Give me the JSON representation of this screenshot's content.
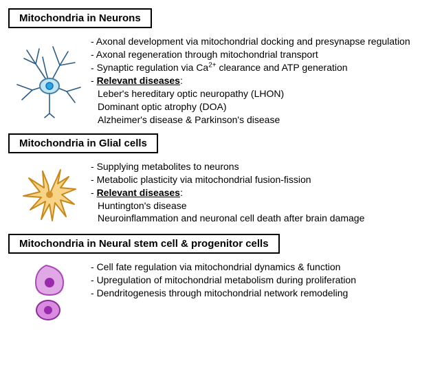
{
  "sections": [
    {
      "title": "Mitochondria in Neurons",
      "icon": {
        "type": "neuron",
        "soma_fill": "#bfe4f2",
        "soma_stroke": "#4a7fa5",
        "nucleus_fill": "#2aa4e2",
        "nucleus_stroke": "#1572b6",
        "branch_color": "#2b5c85",
        "branch_width": 1.6
      },
      "bullets": [
        "Axonal development via mitochondrial docking and presynapse regulation",
        "Axonal regeneration through mitochondrial transport",
        "Synaptic regulation via Ca²⁺ clearance and ATP generation"
      ],
      "relevant_diseases_label": "Relevant diseases",
      "diseases": [
        "Leber's hereditary optic neuropathy (LHON)",
        "Dominant optic atrophy (DOA)",
        "Alzheimer's disease & Parkinson's disease"
      ]
    },
    {
      "title": "Mitochondria in Glial cells",
      "icon": {
        "type": "glia",
        "fill": "#f7d487",
        "stroke": "#c8881a",
        "nucleus_fill": "#d4942f",
        "stroke_width": 2
      },
      "bullets": [
        "Supplying metabolites to neurons",
        "Metabolic plasticity via mitochondrial fusion-fission"
      ],
      "relevant_diseases_label": "Relevant diseases",
      "diseases": [
        "Huntington's disease",
        "Neuroinflammation and neuronal cell death after brain damage"
      ]
    },
    {
      "title": "Mitochondria in Neural stem cell & progenitor cells",
      "icon": {
        "type": "stem",
        "cell1_fill": "#e0a9e6",
        "cell1_stroke": "#a948b5",
        "cell1_nucleus": "#9a2aad",
        "cell2_fill": "#d98bdf",
        "cell2_stroke": "#8d2b9c",
        "stroke_width": 2
      },
      "bullets": [
        "Cell fate regulation via mitochondrial dynamics & function",
        "Upregulation of mitochondrial metabolism during proliferation",
        "Dendritogenesis through mitochondrial network remodeling"
      ],
      "relevant_diseases_label": "",
      "diseases": []
    }
  ],
  "style": {
    "page_bg": "#ffffff",
    "text_color": "#000000",
    "title_border": "#000000",
    "title_fontsize": 15,
    "body_fontsize": 14
  }
}
